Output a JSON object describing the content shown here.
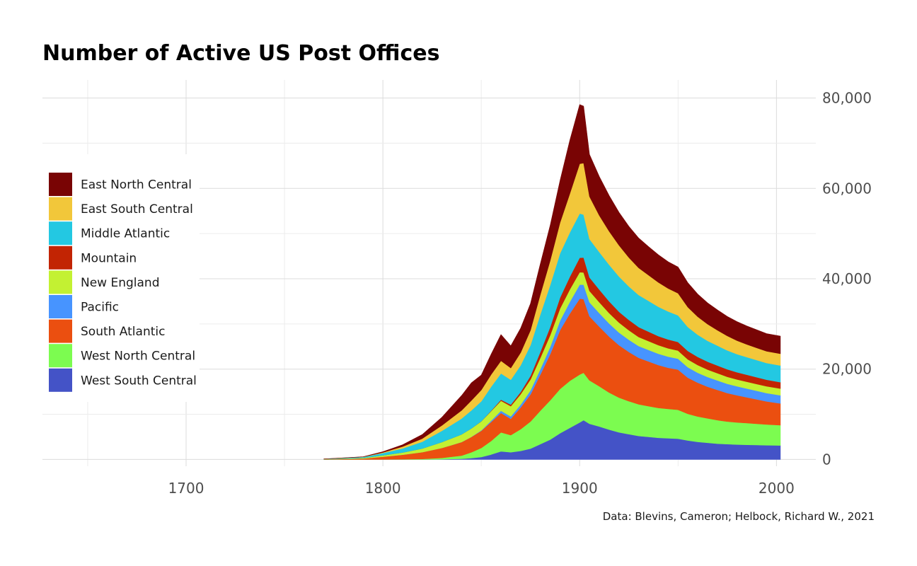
{
  "chart_data": {
    "type": "area",
    "title": "Number of Active US Post Offices",
    "xlabel": "",
    "ylabel": "",
    "caption": "Data: Blevins, Cameron; Helbock, Richard W., 2021",
    "xlim": [
      1627,
      2020
    ],
    "ylim": [
      -1500,
      84000
    ],
    "x_ticks": [
      1700,
      1800,
      1900,
      2000
    ],
    "x_tick_labels": [
      "1700",
      "1800",
      "1900",
      "2000"
    ],
    "y_ticks": [
      0,
      20000,
      40000,
      60000,
      80000
    ],
    "y_tick_labels": [
      "0",
      "20,000",
      "40,000",
      "60,000",
      "80,000"
    ],
    "grid": true,
    "stacked": true,
    "legend_position": "left",
    "x": [
      1770,
      1790,
      1800,
      1810,
      1820,
      1830,
      1840,
      1845,
      1850,
      1855,
      1860,
      1865,
      1870,
      1875,
      1880,
      1885,
      1890,
      1895,
      1900,
      1902,
      1905,
      1910,
      1915,
      1920,
      1925,
      1930,
      1935,
      1940,
      1945,
      1950,
      1955,
      1960,
      1965,
      1970,
      1975,
      1980,
      1985,
      1990,
      1995,
      2002
    ],
    "series": [
      {
        "name": "West South Central",
        "color": "#4453c7",
        "values": [
          0,
          0,
          0,
          0,
          0,
          50,
          150,
          300,
          550,
          1100,
          1800,
          1600,
          1900,
          2400,
          3400,
          4400,
          5800,
          7000,
          8200,
          8700,
          7900,
          7300,
          6600,
          6000,
          5600,
          5200,
          5000,
          4800,
          4700,
          4600,
          4200,
          3900,
          3700,
          3500,
          3400,
          3300,
          3250,
          3200,
          3150,
          3100
        ]
      },
      {
        "name": "West North Central",
        "color": "#7cfc50",
        "values": [
          0,
          0,
          20,
          50,
          120,
          300,
          700,
          1300,
          2000,
          3000,
          4200,
          3800,
          4800,
          6000,
          7400,
          8700,
          9800,
          10400,
          10600,
          10500,
          9600,
          8900,
          8200,
          7700,
          7300,
          7000,
          6800,
          6600,
          6500,
          6400,
          5900,
          5600,
          5400,
          5200,
          5000,
          4900,
          4800,
          4700,
          4600,
          4500
        ]
      },
      {
        "name": "South Atlantic",
        "color": "#eb4f10",
        "values": [
          30,
          200,
          600,
          1000,
          1500,
          2200,
          3000,
          3400,
          3800,
          4200,
          4300,
          3600,
          4800,
          6000,
          8000,
          10200,
          13000,
          14900,
          16800,
          16300,
          14200,
          13200,
          12400,
          11600,
          10900,
          10300,
          9900,
          9500,
          9100,
          8900,
          8000,
          7500,
          7000,
          6700,
          6300,
          6000,
          5700,
          5400,
          5100,
          4800
        ]
      },
      {
        "name": "Pacific",
        "color": "#4794ff",
        "values": [
          0,
          0,
          0,
          0,
          0,
          0,
          10,
          30,
          100,
          300,
          500,
          550,
          650,
          900,
          1200,
          1600,
          2100,
          2600,
          3100,
          3200,
          3100,
          3000,
          2900,
          2800,
          2700,
          2600,
          2550,
          2500,
          2450,
          2400,
          2300,
          2200,
          2150,
          2100,
          2050,
          2000,
          1950,
          1900,
          1850,
          1800
        ]
      },
      {
        "name": "New England",
        "color": "#c3f132",
        "values": [
          40,
          150,
          300,
          500,
          800,
          1300,
          1700,
          1850,
          2000,
          2100,
          2200,
          2250,
          2300,
          2400,
          2500,
          2600,
          2700,
          2750,
          2750,
          2700,
          2500,
          2400,
          2300,
          2200,
          2100,
          2000,
          1950,
          1900,
          1850,
          1800,
          1750,
          1700,
          1650,
          1600,
          1550,
          1500,
          1500,
          1500,
          1500,
          1500
        ]
      },
      {
        "name": "Mountain",
        "color": "#c22403",
        "values": [
          0,
          0,
          0,
          0,
          0,
          0,
          0,
          0,
          30,
          100,
          250,
          350,
          500,
          800,
          1300,
          1800,
          2400,
          2800,
          3200,
          3300,
          3000,
          2800,
          2600,
          2400,
          2300,
          2200,
          2100,
          2000,
          1950,
          1900,
          1850,
          1800,
          1750,
          1700,
          1650,
          1600,
          1550,
          1500,
          1450,
          1400
        ]
      },
      {
        "name": "Middle Atlantic",
        "color": "#23c8e2",
        "values": [
          40,
          200,
          500,
          900,
          1500,
          2500,
          3500,
          4000,
          4400,
          5300,
          5800,
          5500,
          5900,
          6800,
          8300,
          9300,
          9800,
          9800,
          9800,
          9500,
          8500,
          8300,
          8100,
          7800,
          7400,
          7100,
          6800,
          6500,
          6200,
          5900,
          5300,
          4900,
          4600,
          4400,
          4200,
          4000,
          3900,
          3800,
          3700,
          3700
        ]
      },
      {
        "name": "East South Central",
        "color": "#f2c73a",
        "values": [
          0,
          30,
          150,
          400,
          700,
          1200,
          1800,
          2200,
          2500,
          2700,
          2800,
          2600,
          2800,
          3300,
          4400,
          5400,
          6800,
          8600,
          11000,
          11400,
          9400,
          8100,
          7400,
          6900,
          6400,
          6000,
          5700,
          5400,
          5100,
          4900,
          4400,
          4000,
          3700,
          3400,
          3200,
          3000,
          2800,
          2700,
          2600,
          2600
        ]
      },
      {
        "name": "East North Central",
        "color": "#790404",
        "values": [
          0,
          30,
          150,
          400,
          900,
          1800,
          3300,
          3900,
          3300,
          4500,
          5800,
          4900,
          5400,
          5900,
          6800,
          7800,
          9300,
          11800,
          13100,
          12600,
          9300,
          8600,
          7900,
          7300,
          6900,
          6600,
          6300,
          6100,
          5900,
          5800,
          5400,
          5000,
          4700,
          4500,
          4300,
          4200,
          4100,
          4000,
          3900,
          3900
        ]
      }
    ]
  }
}
